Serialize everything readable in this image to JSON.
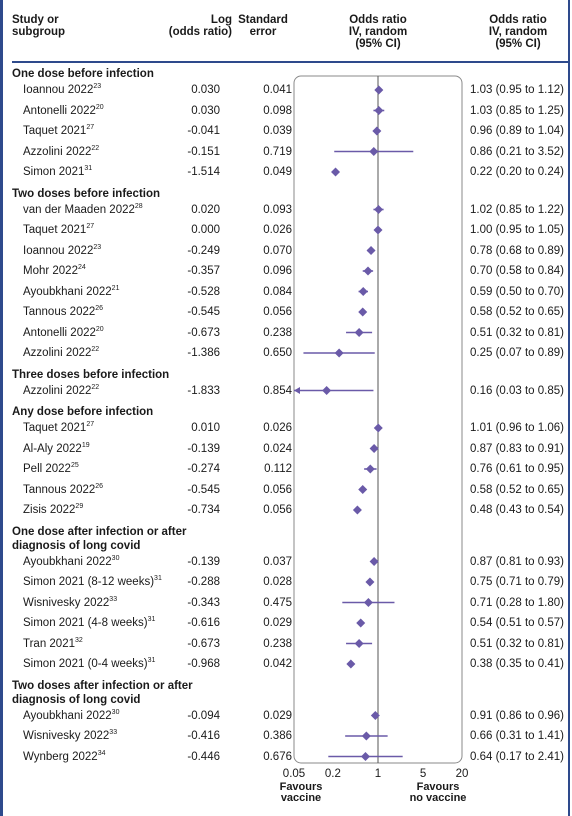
{
  "headers": {
    "study": [
      "Study or",
      "subgroup"
    ],
    "log": [
      "Log",
      "(odds ratio)"
    ],
    "se": [
      "Standard",
      "error"
    ],
    "or_plot": [
      "Odds ratio",
      "IV, random",
      "(95% CI)"
    ],
    "or_text": [
      "Odds ratio",
      "IV, random",
      "(95% CI)"
    ]
  },
  "chart_data": {
    "type": "forest",
    "x_scale": "log",
    "x_ticks": [
      "0.05",
      "0.2",
      "1",
      "5",
      "20"
    ],
    "x_tick_values": [
      0.05,
      0.2,
      1,
      5,
      20
    ],
    "xlim": [
      0.05,
      20
    ],
    "favours_left": [
      "Favours",
      "vaccine"
    ],
    "favours_right": [
      "Favours",
      "no vaccine"
    ],
    "groups": [
      {
        "title": [
          "One dose before infection"
        ],
        "rows": [
          {
            "study": "Ioannou 2022",
            "ref": "23",
            "log_or": "0.030",
            "se": "0.041",
            "ci_text": "1.03 (0.95 to 1.12)",
            "or": 1.03,
            "lo": 0.95,
            "hi": 1.12
          },
          {
            "study": "Antonelli 2022",
            "ref": "20",
            "log_or": "0.030",
            "se": "0.098",
            "ci_text": "1.03 (0.85 to 1.25)",
            "or": 1.03,
            "lo": 0.85,
            "hi": 1.25
          },
          {
            "study": "Taquet 2021",
            "ref": "27",
            "log_or": "-0.041",
            "se": "0.039",
            "ci_text": "0.96 (0.89 to 1.04)",
            "or": 0.96,
            "lo": 0.89,
            "hi": 1.04
          },
          {
            "study": "Azzolini 2022",
            "ref": "22",
            "log_or": "-0.151",
            "se": "0.719",
            "ci_text": "0.86 (0.21 to 3.52)",
            "or": 0.86,
            "lo": 0.21,
            "hi": 3.52
          },
          {
            "study": "Simon 2021",
            "ref": "31",
            "log_or": "-1.514",
            "se": "0.049",
            "ci_text": "0.22 (0.20 to 0.24)",
            "or": 0.22,
            "lo": 0.2,
            "hi": 0.24
          }
        ]
      },
      {
        "title": [
          "Two doses before infection"
        ],
        "rows": [
          {
            "study": "van der Maaden 2022",
            "ref": "28",
            "log_or": "0.020",
            "se": "0.093",
            "ci_text": "1.02 (0.85 to 1.22)",
            "or": 1.02,
            "lo": 0.85,
            "hi": 1.22
          },
          {
            "study": "Taquet 2021",
            "ref": "27",
            "log_or": "0.000",
            "se": "0.026",
            "ci_text": "1.00 (0.95 to 1.05)",
            "or": 1.0,
            "lo": 0.95,
            "hi": 1.05
          },
          {
            "study": "Ioannou 2022",
            "ref": "23",
            "log_or": "-0.249",
            "se": "0.070",
            "ci_text": "0.78 (0.68 to 0.89)",
            "or": 0.78,
            "lo": 0.68,
            "hi": 0.89
          },
          {
            "study": "Mohr 2022",
            "ref": "24",
            "log_or": "-0.357",
            "se": "0.096",
            "ci_text": "0.70 (0.58 to 0.84)",
            "or": 0.7,
            "lo": 0.58,
            "hi": 0.84
          },
          {
            "study": "Ayoubkhani 2022",
            "ref": "21",
            "log_or": "-0.528",
            "se": "0.084",
            "ci_text": "0.59 (0.50 to 0.70)",
            "or": 0.59,
            "lo": 0.5,
            "hi": 0.7
          },
          {
            "study": "Tannous 2022",
            "ref": "26",
            "log_or": "-0.545",
            "se": "0.056",
            "ci_text": "0.58 (0.52 to 0.65)",
            "or": 0.58,
            "lo": 0.52,
            "hi": 0.65
          },
          {
            "study": "Antonelli 2022",
            "ref": "20",
            "log_or": "-0.673",
            "se": "0.238",
            "ci_text": "0.51 (0.32 to 0.81)",
            "or": 0.51,
            "lo": 0.32,
            "hi": 0.81
          },
          {
            "study": "Azzolini 2022",
            "ref": "22",
            "log_or": "-1.386",
            "se": "0.650",
            "ci_text": "0.25 (0.07 to 0.89)",
            "or": 0.25,
            "lo": 0.07,
            "hi": 0.89
          }
        ]
      },
      {
        "title": [
          "Three doses before infection"
        ],
        "rows": [
          {
            "study": "Azzolini 2022",
            "ref": "22",
            "log_or": "-1.833",
            "se": "0.854",
            "ci_text": "0.16 (0.03 to 0.85)",
            "or": 0.16,
            "lo": 0.03,
            "hi": 0.85
          }
        ]
      },
      {
        "title": [
          "Any dose before infection"
        ],
        "rows": [
          {
            "study": "Taquet 2021",
            "ref": "27",
            "log_or": "0.010",
            "se": "0.026",
            "ci_text": "1.01 (0.96 to 1.06)",
            "or": 1.01,
            "lo": 0.96,
            "hi": 1.06
          },
          {
            "study": "Al-Aly 2022",
            "ref": "19",
            "log_or": "-0.139",
            "se": "0.024",
            "ci_text": "0.87 (0.83 to 0.91)",
            "or": 0.87,
            "lo": 0.83,
            "hi": 0.91
          },
          {
            "study": "Pell 2022",
            "ref": "25",
            "log_or": "-0.274",
            "se": "0.112",
            "ci_text": "0.76 (0.61 to 0.95)",
            "or": 0.76,
            "lo": 0.61,
            "hi": 0.95
          },
          {
            "study": "Tannous 2022",
            "ref": "26",
            "log_or": "-0.545",
            "se": "0.056",
            "ci_text": "0.58 (0.52 to 0.65)",
            "or": 0.58,
            "lo": 0.52,
            "hi": 0.65
          },
          {
            "study": "Zisis 2022",
            "ref": "29",
            "log_or": "-0.734",
            "se": "0.056",
            "ci_text": "0.48 (0.43 to 0.54)",
            "or": 0.48,
            "lo": 0.43,
            "hi": 0.54
          }
        ]
      },
      {
        "title": [
          "One dose after infection or after",
          "diagnosis of long covid"
        ],
        "rows": [
          {
            "study": "Ayoubkhani 2022",
            "ref": "30",
            "log_or": "-0.139",
            "se": "0.037",
            "ci_text": "0.87 (0.81 to 0.93)",
            "or": 0.87,
            "lo": 0.81,
            "hi": 0.93
          },
          {
            "study": "Simon 2021 (8-12 weeks)",
            "ref": "31",
            "log_or": "-0.288",
            "se": "0.028",
            "ci_text": "0.75 (0.71 to 0.79)",
            "or": 0.75,
            "lo": 0.71,
            "hi": 0.79
          },
          {
            "study": "Wisnivesky 2022",
            "ref": "33",
            "log_or": "-0.343",
            "se": "0.475",
            "ci_text": "0.71 (0.28 to 1.80)",
            "or": 0.71,
            "lo": 0.28,
            "hi": 1.8
          },
          {
            "study": "Simon 2021 (4-8 weeks)",
            "ref": "31",
            "log_or": "-0.616",
            "se": "0.029",
            "ci_text": "0.54 (0.51 to 0.57)",
            "or": 0.54,
            "lo": 0.51,
            "hi": 0.57
          },
          {
            "study": "Tran 2021",
            "ref": "32",
            "log_or": "-0.673",
            "se": "0.238",
            "ci_text": "0.51 (0.32 to 0.81)",
            "or": 0.51,
            "lo": 0.32,
            "hi": 0.81
          },
          {
            "study": "Simon 2021 (0-4 weeks)",
            "ref": "31",
            "log_or": "-0.968",
            "se": "0.042",
            "ci_text": "0.38 (0.35 to 0.41)",
            "or": 0.38,
            "lo": 0.35,
            "hi": 0.41
          }
        ]
      },
      {
        "title": [
          "Two doses after infection or after",
          "diagnosis of long covid"
        ],
        "rows": [
          {
            "study": "Ayoubkhani 2022",
            "ref": "30",
            "log_or": "-0.094",
            "se": "0.029",
            "ci_text": "0.91 (0.86 to 0.96)",
            "or": 0.91,
            "lo": 0.86,
            "hi": 0.96
          },
          {
            "study": "Wisnivesky 2022",
            "ref": "33",
            "log_or": "-0.416",
            "se": "0.386",
            "ci_text": "0.66 (0.31 to 1.41)",
            "or": 0.66,
            "lo": 0.31,
            "hi": 1.41
          },
          {
            "study": "Wynberg 2022",
            "ref": "34",
            "log_or": "-0.446",
            "se": "0.676",
            "ci_text": "0.64 (0.17 to 2.41)",
            "or": 0.64,
            "lo": 0.17,
            "hi": 2.41
          }
        ]
      }
    ]
  },
  "colors": {
    "marker": "#6a5aa8",
    "frame": "#2e4a8c",
    "panel_border": "#8a8a8a",
    "text": "#1a1a1a"
  }
}
